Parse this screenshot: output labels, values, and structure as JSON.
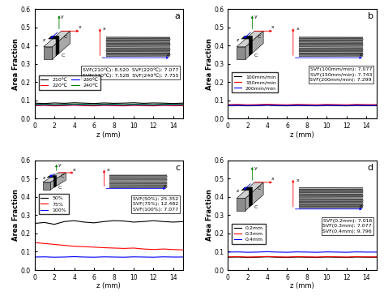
{
  "chart_data": [
    {
      "type": "line",
      "title": "a",
      "xlabel": "z (mm)",
      "ylabel": "Area Fraction",
      "x": [
        0,
        1,
        2,
        3,
        4,
        5,
        6,
        7,
        8,
        9,
        10,
        11,
        12,
        13,
        14,
        15
      ],
      "series": [
        {
          "name": "210℃",
          "color": "#000000",
          "values": [
            0.085,
            0.083,
            0.086,
            0.084,
            0.087,
            0.085,
            0.083,
            0.086,
            0.084,
            0.085,
            0.087,
            0.084,
            0.086,
            0.085,
            0.083,
            0.085
          ]
        },
        {
          "name": "220℃",
          "color": "#ff0000",
          "values": [
            0.071,
            0.072,
            0.07,
            0.071,
            0.073,
            0.071,
            0.07,
            0.072,
            0.071,
            0.07,
            0.072,
            0.071,
            0.07,
            0.072,
            0.071,
            0.071
          ]
        },
        {
          "name": "230℃",
          "color": "#0000ff",
          "values": [
            0.075,
            0.076,
            0.074,
            0.075,
            0.077,
            0.075,
            0.074,
            0.076,
            0.075,
            0.074,
            0.076,
            0.075,
            0.074,
            0.076,
            0.075,
            0.075
          ]
        },
        {
          "name": "240℃",
          "color": "#008000",
          "values": [
            0.078,
            0.079,
            0.077,
            0.078,
            0.08,
            0.078,
            0.077,
            0.079,
            0.078,
            0.077,
            0.079,
            0.078,
            0.077,
            0.079,
            0.078,
            0.078
          ]
        }
      ],
      "xlim": [
        0,
        15
      ],
      "ylim": [
        0,
        0.6
      ],
      "xticks": [
        0,
        2,
        4,
        6,
        8,
        10,
        12,
        14
      ],
      "yticks": [
        {
          "value": 0,
          "label": "0.0"
        },
        0.1,
        0.2,
        0.3,
        0.4,
        0.5,
        0.6
      ],
      "grid": false,
      "legend": "center left",
      "annotations": {
        "svf": [
          "SVF(210℃): 8.520  SVF(220℃): 7.077",
          "SVF(230℃): 7.528  SVF(240℃): 7.755"
        ],
        "schematic": [
          "y",
          "x",
          "z",
          "C",
          "C"
        ],
        "image_axes": [
          "x",
          "z"
        ]
      }
    },
    {
      "type": "line",
      "title": "b",
      "xlabel": "z (mm)",
      "ylabel": "Area Fraction",
      "x": [
        0,
        1,
        2,
        3,
        4,
        5,
        6,
        7,
        8,
        9,
        10,
        11,
        12,
        13,
        14,
        15
      ],
      "series": [
        {
          "name": "100mm/min",
          "color": "#000000",
          "values": [
            0.071,
            0.072,
            0.07,
            0.071,
            0.073,
            0.071,
            0.07,
            0.072,
            0.071,
            0.07,
            0.072,
            0.071,
            0.07,
            0.072,
            0.071,
            0.071
          ]
        },
        {
          "name": "150mm/min",
          "color": "#ff0000",
          "values": [
            0.077,
            0.078,
            0.076,
            0.077,
            0.079,
            0.077,
            0.076,
            0.078,
            0.077,
            0.076,
            0.078,
            0.077,
            0.076,
            0.078,
            0.077,
            0.077
          ]
        },
        {
          "name": "200mm/min",
          "color": "#0000ff",
          "values": [
            0.073,
            0.074,
            0.072,
            0.073,
            0.075,
            0.073,
            0.072,
            0.074,
            0.073,
            0.072,
            0.074,
            0.073,
            0.072,
            0.074,
            0.073,
            0.073
          ]
        }
      ],
      "xlim": [
        0,
        15
      ],
      "ylim": [
        0,
        0.6
      ],
      "xticks": [
        0,
        2,
        4,
        6,
        8,
        10,
        12,
        14
      ],
      "yticks": [
        {
          "value": 0,
          "label": "0.0"
        },
        0.1,
        0.2,
        0.3,
        0.4,
        0.5,
        0.6
      ],
      "grid": false,
      "legend": "center left",
      "annotations": {
        "svf": [
          "SVF(100mm/min): 7.077",
          "SVF(150mm/min): 7.743",
          "SVF(200mm/min): 7.299"
        ],
        "schematic": [
          "y",
          "x",
          "z",
          "C",
          "C"
        ],
        "image_axes": [
          "x",
          "z"
        ]
      }
    },
    {
      "type": "line",
      "title": "c",
      "xlabel": "z (mm)",
      "ylabel": "Area Fraction",
      "x": [
        0,
        1,
        2,
        3,
        4,
        5,
        6,
        7,
        8,
        9,
        10,
        11,
        12,
        13,
        14,
        15
      ],
      "series": [
        {
          "name": "50%",
          "color": "#000000",
          "values": [
            0.255,
            0.26,
            0.25,
            0.265,
            0.27,
            0.262,
            0.258,
            0.265,
            0.27,
            0.268,
            0.262,
            0.265,
            0.27,
            0.265,
            0.262,
            0.265
          ]
        },
        {
          "name": "75%",
          "color": "#ff0000",
          "values": [
            0.15,
            0.145,
            0.14,
            0.135,
            0.13,
            0.128,
            0.125,
            0.122,
            0.12,
            0.118,
            0.12,
            0.115,
            0.112,
            0.115,
            0.112,
            0.11
          ]
        },
        {
          "name": "100%",
          "color": "#0000ff",
          "values": [
            0.071,
            0.072,
            0.07,
            0.071,
            0.073,
            0.071,
            0.07,
            0.072,
            0.071,
            0.07,
            0.072,
            0.071,
            0.07,
            0.072,
            0.071,
            0.071
          ]
        }
      ],
      "xlim": [
        0,
        15
      ],
      "ylim": [
        0,
        0.6
      ],
      "xticks": [
        0,
        2,
        4,
        6,
        8,
        10,
        12,
        14
      ],
      "yticks": [
        {
          "value": 0,
          "label": "0.0"
        },
        0.1,
        0.2,
        0.3,
        0.4,
        0.5,
        0.6
      ],
      "grid": false,
      "legend": "center left",
      "annotations": {
        "svf": [
          "SVF(50%): 25.352",
          "SVF(75%): 12.482",
          "SVF(100%): 7.077"
        ],
        "schematic": [
          "y",
          "x",
          "z",
          "C",
          "C"
        ],
        "image_axes": [
          "x",
          "z"
        ]
      }
    },
    {
      "type": "line",
      "title": "d",
      "xlabel": "z (mm)",
      "ylabel": "Area Fraction",
      "x": [
        0,
        1,
        2,
        3,
        4,
        5,
        6,
        7,
        8,
        9,
        10,
        11,
        12,
        13,
        14,
        15
      ],
      "series": [
        {
          "name": "0.2mm",
          "color": "#000000",
          "values": [
            0.07,
            0.071,
            0.069,
            0.07,
            0.072,
            0.07,
            0.069,
            0.071,
            0.07,
            0.069,
            0.071,
            0.07,
            0.069,
            0.071,
            0.07,
            0.07
          ]
        },
        {
          "name": "0.3mm",
          "color": "#ff0000",
          "values": [
            0.072,
            0.073,
            0.071,
            0.072,
            0.074,
            0.072,
            0.071,
            0.073,
            0.072,
            0.071,
            0.073,
            0.072,
            0.071,
            0.073,
            0.072,
            0.072
          ]
        },
        {
          "name": "0.4mm",
          "color": "#0000ff",
          "values": [
            0.098,
            0.099,
            0.097,
            0.098,
            0.1,
            0.098,
            0.097,
            0.099,
            0.098,
            0.097,
            0.099,
            0.098,
            0.097,
            0.099,
            0.098,
            0.098
          ]
        }
      ],
      "xlim": [
        0,
        15
      ],
      "ylim": [
        0,
        0.6
      ],
      "xticks": [
        0,
        2,
        4,
        6,
        8,
        10,
        12,
        14
      ],
      "yticks": [
        {
          "value": 0,
          "label": "0.0"
        },
        0.1,
        0.2,
        0.3,
        0.4,
        0.5,
        0.6
      ],
      "grid": false,
      "legend": "center left",
      "annotations": {
        "svf": [
          "SVF(0.2mm): 7.016",
          "SVF(0.3mm): 7.077",
          "SVF(0.4mm): 9.796"
        ],
        "schematic": [
          "y",
          "x",
          "z",
          "C",
          "C"
        ],
        "image_axes": [
          "x",
          "z"
        ]
      }
    }
  ]
}
